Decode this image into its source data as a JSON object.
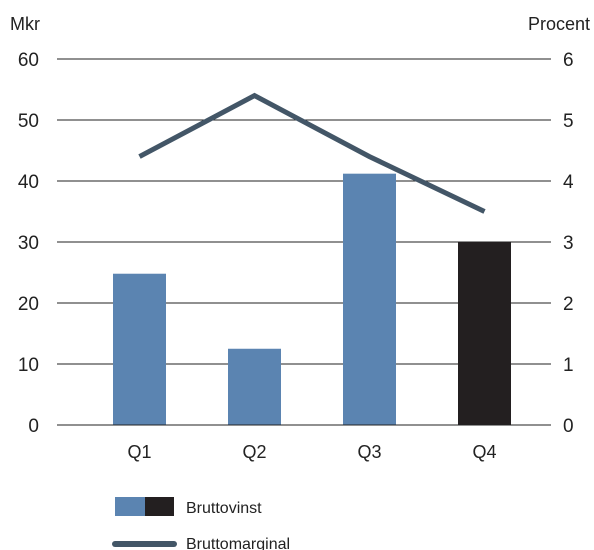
{
  "chart_data": {
    "type": "bar",
    "categories": [
      "Q1",
      "Q2",
      "Q3",
      "Q4"
    ],
    "left_axis": {
      "label": "Mkr",
      "ylim": [
        0,
        60
      ],
      "ticks": [
        "0",
        "10",
        "20",
        "30",
        "40",
        "50",
        "60"
      ]
    },
    "right_axis": {
      "label": "Procent",
      "ylim": [
        0,
        6
      ],
      "ticks": [
        "0",
        "1",
        "2",
        "3",
        "4",
        "5",
        "6"
      ]
    },
    "series": [
      {
        "name": "Bruttovinst",
        "type": "bar",
        "axis": "left",
        "values": [
          24.8,
          12.5,
          41.2,
          30.0
        ],
        "colors": [
          "#5b84b1",
          "#5b84b1",
          "#5b84b1",
          "#231f20"
        ]
      },
      {
        "name": "Bruttomarginal",
        "type": "line",
        "axis": "right",
        "values": [
          4.4,
          5.4,
          4.4,
          3.5
        ],
        "color": "#435667"
      }
    ],
    "grid": true,
    "legend_position": "bottom-left",
    "legend": [
      {
        "label": "Bruttovinst",
        "swatch_colors": [
          "#5b84b1",
          "#231f20"
        ]
      },
      {
        "label": "Bruttomarginal",
        "swatch_color": "#435667"
      }
    ]
  }
}
